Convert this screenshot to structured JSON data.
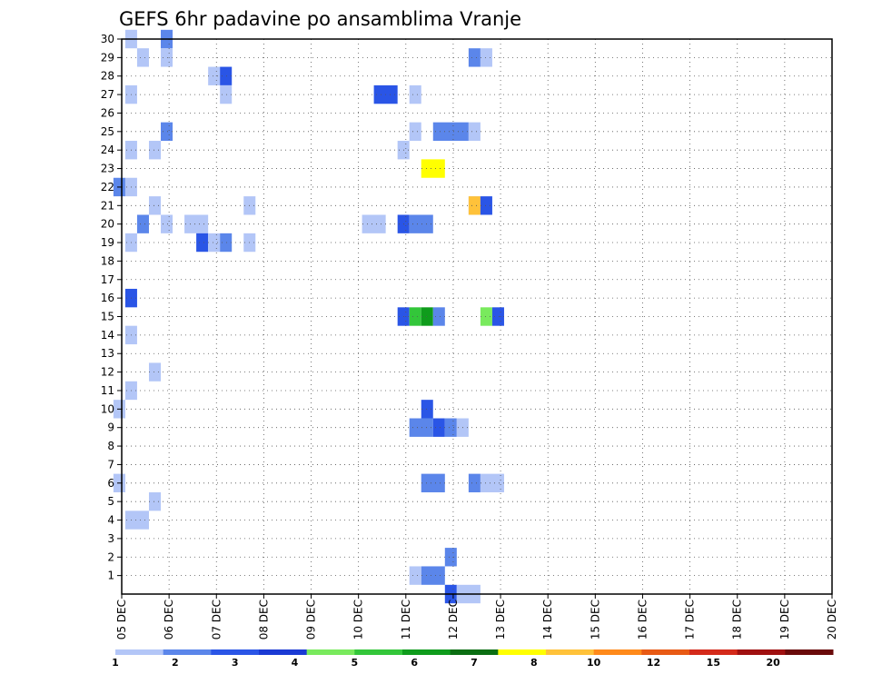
{
  "chart_data": {
    "type": "heatmap",
    "title": "GEFS 6hr padavine po ansamblima Vranje",
    "xlabel": "",
    "ylabel": "",
    "x_tick_labels": [
      "05 DEC",
      "06 DEC",
      "07 DEC",
      "08 DEC",
      "09 DEC",
      "10 DEC",
      "11 DEC",
      "12 DEC",
      "13 DEC",
      "14 DEC",
      "15 DEC",
      "16 DEC",
      "17 DEC",
      "18 DEC",
      "19 DEC",
      "20 DEC"
    ],
    "x_range_days": [
      0,
      15
    ],
    "steps_per_day": 4,
    "y_tick_labels": [
      "1",
      "2",
      "3",
      "4",
      "5",
      "6",
      "7",
      "8",
      "9",
      "10",
      "11",
      "12",
      "13",
      "14",
      "15",
      "16",
      "17",
      "18",
      "19",
      "20",
      "21",
      "22",
      "23",
      "24",
      "25",
      "26",
      "27",
      "28",
      "29",
      "30"
    ],
    "y_range": [
      0,
      30
    ],
    "grid": true,
    "legend": {
      "placement": "bottom",
      "labels": [
        "1",
        "2",
        "3",
        "4",
        "5",
        "6",
        "7",
        "8",
        "10",
        "12",
        "15",
        "20"
      ],
      "colors": [
        "#b3c6f7",
        "#5b86ea",
        "#2a55e6",
        "#1a3ad4",
        "#79ea5d",
        "#33c63a",
        "#0f9c1c",
        "#0a6e12",
        "#ffff00",
        "#ffc23a",
        "#ff8a1a",
        "#e85a14",
        "#d42a1a",
        "#a01010",
        "#6a0a0a"
      ]
    },
    "cells": [
      [
        0,
        30,
        0,
        1
      ],
      [
        3,
        30,
        1,
        1
      ],
      [
        1,
        29,
        0,
        1
      ],
      [
        3,
        29,
        0,
        1
      ],
      [
        29,
        29,
        1,
        1
      ],
      [
        30,
        29,
        0,
        1
      ],
      [
        7,
        28,
        0,
        1
      ],
      [
        8,
        28,
        2,
        1
      ],
      [
        0,
        27,
        0,
        1
      ],
      [
        8,
        27,
        0,
        1
      ],
      [
        21,
        27,
        2,
        2
      ],
      [
        24,
        27,
        0,
        1
      ],
      [
        24,
        25,
        0,
        1
      ],
      [
        26,
        25,
        1,
        3
      ],
      [
        29,
        25,
        0,
        1
      ],
      [
        3,
        25,
        1,
        1
      ],
      [
        0,
        24,
        0,
        1
      ],
      [
        2,
        24,
        0,
        1
      ],
      [
        23,
        24,
        0,
        1
      ],
      [
        25,
        23,
        8,
        2
      ],
      [
        -1,
        22,
        1,
        1
      ],
      [
        0,
        22,
        0,
        1
      ],
      [
        2,
        21,
        0,
        1
      ],
      [
        10,
        21,
        0,
        1
      ],
      [
        29,
        21,
        0,
        1
      ],
      [
        29,
        21,
        9,
        1
      ],
      [
        30,
        21,
        2,
        1
      ],
      [
        1,
        20,
        1,
        1
      ],
      [
        3,
        20,
        0,
        1
      ],
      [
        5,
        20,
        0,
        2
      ],
      [
        20,
        20,
        0,
        2
      ],
      [
        23,
        20,
        2,
        1
      ],
      [
        24,
        20,
        1,
        2
      ],
      [
        0,
        19,
        0,
        1
      ],
      [
        6,
        19,
        2,
        1
      ],
      [
        7,
        19,
        0,
        1
      ],
      [
        8,
        19,
        1,
        1
      ],
      [
        10,
        19,
        0,
        1
      ],
      [
        0,
        16,
        2,
        1
      ],
      [
        0,
        14,
        0,
        1
      ],
      [
        2,
        12,
        0,
        1
      ],
      [
        0,
        11,
        0,
        1
      ],
      [
        -1,
        10,
        0,
        1
      ],
      [
        23,
        15,
        2,
        1
      ],
      [
        24,
        15,
        5,
        1
      ],
      [
        25,
        15,
        6,
        1
      ],
      [
        26,
        15,
        1,
        1
      ],
      [
        30,
        15,
        4,
        1
      ],
      [
        31,
        15,
        2,
        1
      ],
      [
        25,
        10,
        2,
        1
      ],
      [
        24,
        9,
        1,
        2
      ],
      [
        26,
        9,
        2,
        1
      ],
      [
        27,
        9,
        1,
        1
      ],
      [
        28,
        9,
        0,
        1
      ],
      [
        -1,
        6,
        0,
        1
      ],
      [
        25,
        6,
        1,
        2
      ],
      [
        29,
        6,
        1,
        1
      ],
      [
        30,
        6,
        0,
        2
      ],
      [
        2,
        5,
        0,
        1
      ],
      [
        0,
        4,
        0,
        2
      ],
      [
        27,
        2,
        1,
        1
      ],
      [
        25,
        1,
        1,
        2
      ],
      [
        24,
        1,
        0,
        1
      ],
      [
        27,
        0,
        2,
        1
      ],
      [
        28,
        0,
        0,
        2
      ]
    ]
  }
}
